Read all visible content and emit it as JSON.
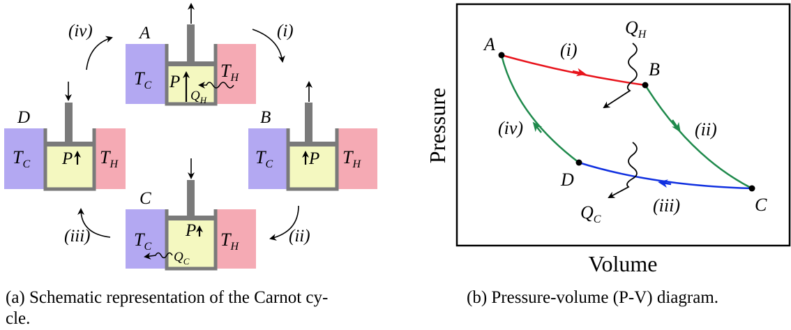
{
  "panel_a": {
    "caption_line1": "(a) Schematic representation of the Carnot cy-",
    "caption_line2": "cle.",
    "reservoir_cold": "T",
    "reservoir_cold_sub": "C",
    "reservoir_hot": "T",
    "reservoir_hot_sub": "H",
    "pressure": "P",
    "states": [
      {
        "name": "A",
        "heat": "Q",
        "heat_sub": "H"
      },
      {
        "name": "B"
      },
      {
        "name": "C",
        "heat": "Q",
        "heat_sub": "C"
      },
      {
        "name": "D"
      }
    ],
    "steps": [
      "(i)",
      "(ii)",
      "(iii)",
      "(iv)"
    ],
    "colors": {
      "cold": "#b3a8f2",
      "hot": "#f5aab4",
      "gas": "#f4f8c0",
      "wall": "#7a7a7a"
    }
  },
  "panel_b": {
    "caption": "(b) Pressure-volume (P-V) diagram.",
    "xlabel": "Volume",
    "ylabel": "Pressure",
    "points": [
      "A",
      "B",
      "C",
      "D"
    ],
    "heat_in": "Q",
    "heat_in_sub": "H",
    "heat_out": "Q",
    "heat_out_sub": "C",
    "steps": [
      "(i)",
      "(ii)",
      "(iii)",
      "(iv)"
    ],
    "colors": {
      "i": "#e8141c",
      "ii": "#1f8a4c",
      "iii": "#1030e0",
      "iv": "#1f8a4c"
    }
  }
}
